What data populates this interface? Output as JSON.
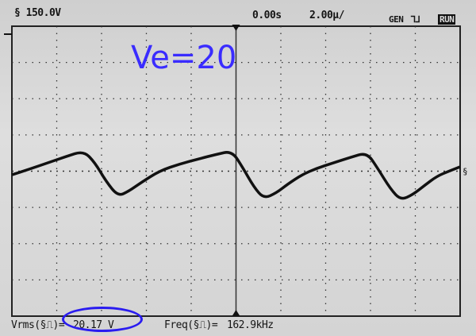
{
  "header": {
    "channel_scale": "§ 150.0V",
    "trigger_time": "0.00s",
    "time_scale": "2.00µ/",
    "trigger_mode": "GEN",
    "trigger_symbol": "⅂⅃",
    "run_status": "RUN"
  },
  "footer": {
    "vrms_label": "Vrms(§⎍)=",
    "vrms_value": "20.17 V",
    "freq_label": "Freq(§⎍)=",
    "freq_value": "162.9kHz"
  },
  "annotation": {
    "text": "Ve=20",
    "color": "#3a2cff"
  },
  "chart_data": {
    "type": "line",
    "title": "",
    "xlabel": "",
    "ylabel": "",
    "x_unit": "µs",
    "y_unit": "V",
    "xlim": [
      -10,
      10
    ],
    "ylim": [
      -200,
      200
    ],
    "x_per_div": 2.0,
    "y_per_div": 50.0,
    "grid": true,
    "trace_color": "#111111",
    "series": [
      {
        "x": [
          -10.0,
          -9.2,
          -8.4,
          -7.6,
          -6.8,
          -6.3,
          -5.8,
          -5.27,
          -4.8,
          -4.2,
          -3.4,
          -2.5,
          -1.66,
          -0.9,
          -0.18,
          0.3,
          0.8,
          1.24,
          1.8,
          2.3,
          2.94,
          3.6,
          4.35,
          5.1,
          5.84,
          6.3,
          6.9,
          7.36,
          7.9,
          8.4,
          8.96,
          9.5,
          10.0
        ],
        "y": [
          -5,
          3,
          11.5,
          20,
          28,
          12,
          -14,
          -34.5,
          -28,
          -15,
          0.5,
          10,
          17,
          23,
          28,
          5,
          -22,
          -37.8,
          -30,
          -18,
          -5,
          4,
          11.5,
          19,
          25.8,
          5,
          -25,
          -40,
          -32,
          -20,
          -7,
          0,
          6
        ]
      }
    ]
  }
}
